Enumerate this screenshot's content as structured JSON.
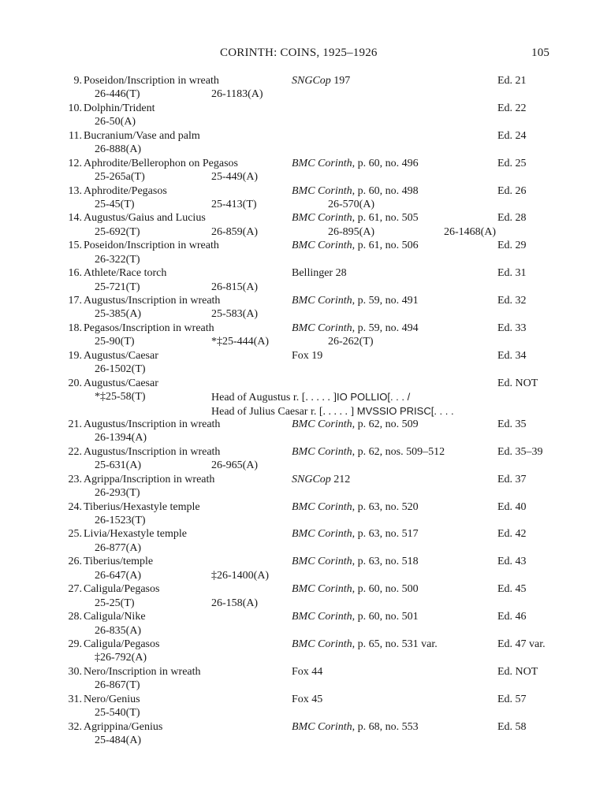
{
  "header": {
    "title": "CORINTH: COINS, 1925–1926",
    "page_number": "105"
  },
  "entries": [
    {
      "num": "9.",
      "title": "Poseidon/Inscription in wreath",
      "ref_italic": "SNGCop",
      "ref_rest": " 197",
      "ed": "Ed. 21",
      "acc": [
        "26-446(T)",
        "26-1183(A)"
      ]
    },
    {
      "num": "10.",
      "title": "Dolphin/Trident",
      "ref_italic": "",
      "ref_rest": "",
      "ed": "Ed. 22",
      "acc": [
        "26-50(A)"
      ]
    },
    {
      "num": "11.",
      "title": "Bucranium/Vase and palm",
      "ref_italic": "",
      "ref_rest": "",
      "ed": "Ed. 24",
      "acc": [
        "26-888(A)"
      ]
    },
    {
      "num": "12.",
      "title": "Aphrodite/Bellerophon on Pegasos",
      "ref_italic": "BMC Corinth",
      "ref_rest": ", p. 60, no. 496",
      "ed": "Ed. 25",
      "acc": [
        "25-265a(T)",
        "25-449(A)"
      ]
    },
    {
      "num": "13.",
      "title": "Aphrodite/Pegasos",
      "ref_italic": "BMC Corinth",
      "ref_rest": ", p. 60, no. 498",
      "ed": "Ed. 26",
      "acc": [
        "25-45(T)",
        "25-413(T)",
        "26-570(A)"
      ]
    },
    {
      "num": "14.",
      "title": "Augustus/Gaius and Lucius",
      "ref_italic": "BMC Corinth",
      "ref_rest": ", p. 61, no. 505",
      "ed": "Ed. 28",
      "acc": [
        "25-692(T)",
        "26-859(A)",
        "26-895(A)",
        "26-1468(A)"
      ]
    },
    {
      "num": "15.",
      "title": "Poseidon/Inscription in wreath",
      "ref_italic": "BMC Corinth",
      "ref_rest": ", p. 61, no. 506",
      "ed": "Ed. 29",
      "acc": [
        "26-322(T)"
      ]
    },
    {
      "num": "16.",
      "title": "Athlete/Race torch",
      "ref_italic": "",
      "ref_rest": "Bellinger 28",
      "ed": "Ed. 31",
      "acc": [
        "25-721(T)",
        "26-815(A)"
      ]
    },
    {
      "num": "17.",
      "title": "Augustus/Inscription in wreath",
      "ref_italic": "BMC Corinth",
      "ref_rest": ", p. 59, no. 491",
      "ed": "Ed. 32",
      "acc": [
        "25-385(A)",
        "25-583(A)"
      ]
    },
    {
      "num": "18.",
      "title": "Pegasos/Inscription in wreath",
      "ref_italic": "BMC Corinth",
      "ref_rest": ", p. 59, no. 494",
      "ed": "Ed. 33",
      "acc": [
        "25-90(T)",
        "*‡25-444(A)",
        "26-262(T)"
      ]
    },
    {
      "num": "19.",
      "title": "Augustus/Caesar",
      "ref_italic": "",
      "ref_rest": "Fox 19",
      "ed": "Ed. 34",
      "acc": [
        "26-1502(T)"
      ]
    },
    {
      "num": "20.",
      "title": "Augustus/Caesar",
      "ref_italic": "",
      "ref_rest": "",
      "ed": "Ed. NOT",
      "acc": [
        "*‡25-58(T)"
      ],
      "desc": [
        {
          "serif": "Head of Augustus r. [. . . . . ]",
          "sans": "IO POLLIO[. . .  /"
        },
        {
          "serif": "Head of Julius Caesar r. [. . . . . ]",
          "sans": " MVSSIO PRISC[. . . ."
        }
      ]
    },
    {
      "num": "21.",
      "title": "Augustus/Inscription in wreath",
      "ref_italic": "BMC Corinth",
      "ref_rest": ", p. 62, no. 509",
      "ed": "Ed. 35",
      "acc": [
        "26-1394(A)"
      ]
    },
    {
      "num": "22.",
      "title": "Augustus/Inscription in wreath",
      "ref_italic": "BMC Corinth",
      "ref_rest": ", p. 62, nos. 509–512",
      "ed": "Ed. 35–39",
      "acc": [
        "25-631(A)",
        "26-965(A)"
      ]
    },
    {
      "num": "23.",
      "title": "Agrippa/Inscription in wreath",
      "ref_italic": "SNGCop",
      "ref_rest": " 212",
      "ed": "Ed. 37",
      "acc": [
        "26-293(T)"
      ]
    },
    {
      "num": "24.",
      "title": "Tiberius/Hexastyle temple",
      "ref_italic": "BMC Corinth",
      "ref_rest": ", p. 63, no. 520",
      "ed": "Ed. 40",
      "acc": [
        "26-1523(T)"
      ]
    },
    {
      "num": "25.",
      "title": "Livia/Hexastyle temple",
      "ref_italic": "BMC Corinth",
      "ref_rest": ", p. 63, no. 517",
      "ed": "Ed. 42",
      "acc": [
        "26-877(A)"
      ]
    },
    {
      "num": "26.",
      "title": "Tiberius/temple",
      "ref_italic": "BMC Corinth",
      "ref_rest": ", p. 63, no. 518",
      "ed": "Ed. 43",
      "acc": [
        "26-647(A)",
        "‡26-1400(A)"
      ]
    },
    {
      "num": "27.",
      "title": "Caligula/Pegasos",
      "ref_italic": "BMC Corinth",
      "ref_rest": ", p. 60, no. 500",
      "ed": "Ed. 45",
      "acc": [
        "25-25(T)",
        "26-158(A)"
      ]
    },
    {
      "num": "28.",
      "title": "Caligula/Nike",
      "ref_italic": "BMC Corinth",
      "ref_rest": ", p. 60, no. 501",
      "ed": "Ed. 46",
      "acc": [
        "26-835(A)"
      ]
    },
    {
      "num": "29.",
      "title": "Caligula/Pegasos",
      "ref_italic": "BMC Corinth",
      "ref_rest": ", p. 65, no. 531 var.",
      "ed": "Ed. 47 var.",
      "acc": [
        "‡26-792(A)"
      ]
    },
    {
      "num": "30.",
      "title": "Nero/Inscription in wreath",
      "ref_italic": "",
      "ref_rest": "Fox 44",
      "ed": "Ed. NOT",
      "acc": [
        "26-867(T)"
      ]
    },
    {
      "num": "31.",
      "title": "Nero/Genius",
      "ref_italic": "",
      "ref_rest": "Fox 45",
      "ed": "Ed. 57",
      "acc": [
        "25-540(T)"
      ]
    },
    {
      "num": "32.",
      "title": "Agrippina/Genius",
      "ref_italic": "BMC Corinth",
      "ref_rest": ", p. 68, no. 553",
      "ed": "Ed. 58",
      "acc": [
        "25-484(A)"
      ]
    }
  ]
}
